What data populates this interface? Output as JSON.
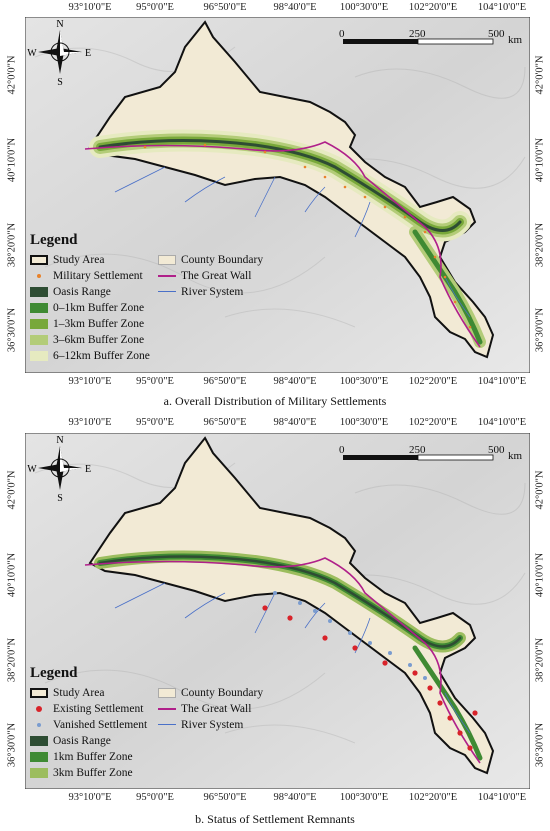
{
  "panels": [
    {
      "caption": "a. Overall Distribution of Military Settlements",
      "x_ticks": [
        "93°10'0\"E",
        "95°0'0\"E",
        "96°50'0\"E",
        "98°40'0\"E",
        "100°30'0\"E",
        "102°20'0\"E",
        "104°10'0\"E"
      ],
      "y_ticks": [
        "42°0'0\"N",
        "40°10'0\"N",
        "38°20'0\"N",
        "36°30'0\"N"
      ],
      "scale": {
        "labels": [
          "0",
          "250",
          "500"
        ],
        "unit": "km"
      },
      "compass": {
        "n": "N",
        "s": "S",
        "e": "E",
        "w": "W"
      },
      "legend": {
        "title": "Legend",
        "items": [
          {
            "label": "Study Area",
            "icon": "black-outline-box"
          },
          {
            "label": "County Boundary",
            "icon": "beige-box",
            "color": "#f2ead5"
          },
          {
            "label": "Military Settlement",
            "icon": "orange-dot",
            "color": "#e8822a"
          },
          {
            "label": "The Great Wall",
            "icon": "magenta-line",
            "color": "#b0208a"
          },
          {
            "label": "Oasis Range",
            "icon": "dark-green-box",
            "color": "#2e4d33"
          },
          {
            "label": "River System",
            "icon": "blue-line",
            "color": "#4a70c8"
          },
          {
            "label": "0–1km Buffer Zone",
            "icon": "green-box",
            "color": "#3f8a33"
          },
          {
            "label": "1–3km Buffer Zone",
            "icon": "mid-green-box",
            "color": "#78a83a"
          },
          {
            "label": "3–6km Buffer Zone",
            "icon": "light-green-box",
            "color": "#b3cc78"
          },
          {
            "label": "6–12km Buffer Zone",
            "icon": "pale-green-box",
            "color": "#e6eac0"
          }
        ]
      }
    },
    {
      "caption": "b. Status of Settlement Remnants",
      "x_ticks": [
        "93°10'0\"E",
        "95°0'0\"E",
        "96°50'0\"E",
        "98°40'0\"E",
        "100°30'0\"E",
        "102°20'0\"E",
        "104°10'0\"E"
      ],
      "y_ticks": [
        "42°0'0\"N",
        "40°10'0\"N",
        "38°20'0\"N",
        "36°30'0\"N"
      ],
      "scale": {
        "labels": [
          "0",
          "250",
          "500"
        ],
        "unit": "km"
      },
      "compass": {
        "n": "N",
        "s": "S",
        "e": "E",
        "w": "W"
      },
      "legend": {
        "title": "Legend",
        "items": [
          {
            "label": "Study Area",
            "icon": "black-outline-box"
          },
          {
            "label": "County Boundary",
            "icon": "beige-box",
            "color": "#f2ead5"
          },
          {
            "label": "Existing Settlement",
            "icon": "red-dot",
            "color": "#d8232a"
          },
          {
            "label": "The Great Wall",
            "icon": "magenta-line",
            "color": "#b0208a"
          },
          {
            "label": "Vanished Settlement",
            "icon": "blue-dot",
            "color": "#7a9ccf"
          },
          {
            "label": "River System",
            "icon": "blue-line",
            "color": "#4a70c8"
          },
          {
            "label": "Oasis Range",
            "icon": "dark-green-box",
            "color": "#2e4d33"
          },
          {
            "label": "1km Buffer Zone",
            "icon": "green-box",
            "color": "#3f8a33"
          },
          {
            "label": "3km Buffer Zone",
            "icon": "light-green-box",
            "color": "#9cbd5e"
          }
        ]
      }
    }
  ]
}
